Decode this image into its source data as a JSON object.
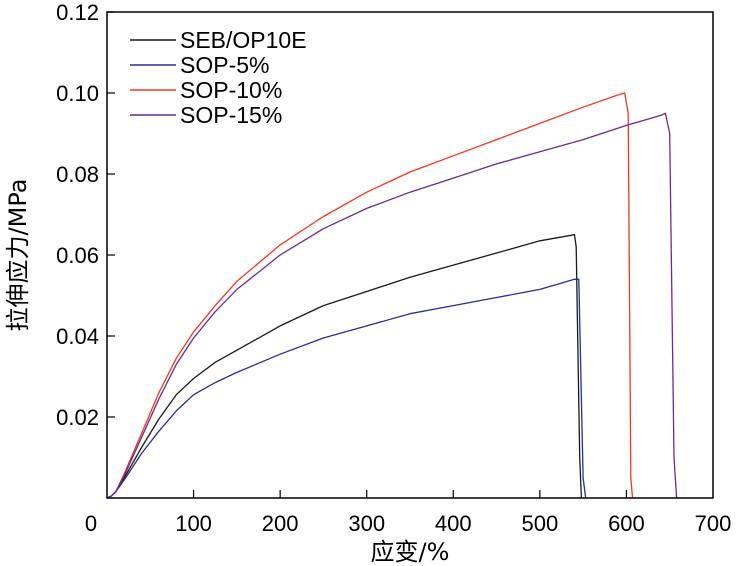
{
  "chart_data": {
    "type": "line",
    "xlabel": "应变/%",
    "ylabel": "拉伸应力/MPa",
    "xlim": [
      0,
      700
    ],
    "ylim": [
      0,
      0.12
    ],
    "x_ticks": [
      0,
      100,
      200,
      300,
      400,
      500,
      600,
      700
    ],
    "x_tick_labels": [
      "0",
      "100",
      "200",
      "300",
      "400",
      "500",
      "600",
      "700"
    ],
    "y_ticks": [
      0.02,
      0.04,
      0.06,
      0.08,
      0.1,
      0.12
    ],
    "y_tick_labels": [
      "0.02",
      "0.04",
      "0.06",
      "0.08",
      "0.10",
      "0.12"
    ],
    "grid": false,
    "legend_position": "top-left",
    "series": [
      {
        "name": "SEB/OP10E",
        "color": "#1a1a1a",
        "x": [
          0,
          5,
          10,
          20,
          40,
          60,
          80,
          100,
          125,
          150,
          200,
          250,
          300,
          350,
          400,
          450,
          500,
          540,
          542,
          546,
          548
        ],
        "y": [
          0,
          0.0005,
          0.0015,
          0.005,
          0.0125,
          0.0195,
          0.0255,
          0.0295,
          0.0335,
          0.0365,
          0.0425,
          0.0475,
          0.051,
          0.0545,
          0.0575,
          0.0605,
          0.0635,
          0.065,
          0.062,
          0.01,
          0
        ]
      },
      {
        "name": "SOP-5%",
        "color": "#2b2f8c",
        "x": [
          0,
          5,
          10,
          20,
          40,
          60,
          80,
          100,
          125,
          150,
          200,
          250,
          300,
          350,
          400,
          450,
          500,
          540,
          545,
          550,
          553
        ],
        "y": [
          0,
          0.0005,
          0.0015,
          0.0045,
          0.011,
          0.0165,
          0.0215,
          0.0255,
          0.0285,
          0.031,
          0.0355,
          0.0395,
          0.0425,
          0.0455,
          0.0475,
          0.0495,
          0.0515,
          0.054,
          0.054,
          0.005,
          0
        ]
      },
      {
        "name": "SOP-10%",
        "color": "#e83a24",
        "x": [
          0,
          5,
          10,
          20,
          40,
          60,
          80,
          100,
          125,
          150,
          200,
          250,
          300,
          350,
          400,
          450,
          500,
          550,
          590,
          598,
          602,
          605,
          607
        ],
        "y": [
          0,
          0.0005,
          0.0015,
          0.006,
          0.016,
          0.026,
          0.0345,
          0.041,
          0.0475,
          0.0535,
          0.0625,
          0.0695,
          0.0755,
          0.0805,
          0.0845,
          0.0885,
          0.0925,
          0.0965,
          0.0995,
          0.1,
          0.095,
          0.005,
          0
        ]
      },
      {
        "name": "SOP-15%",
        "color": "#6a2c8a",
        "x": [
          0,
          5,
          10,
          20,
          40,
          60,
          80,
          100,
          125,
          150,
          200,
          250,
          300,
          350,
          400,
          450,
          500,
          550,
          600,
          640,
          645,
          650,
          655,
          658
        ],
        "y": [
          0,
          0.0005,
          0.0015,
          0.0055,
          0.015,
          0.0245,
          0.033,
          0.0395,
          0.046,
          0.0515,
          0.06,
          0.0665,
          0.0715,
          0.0755,
          0.079,
          0.0825,
          0.0855,
          0.0885,
          0.092,
          0.0945,
          0.095,
          0.09,
          0.01,
          0
        ]
      }
    ]
  }
}
